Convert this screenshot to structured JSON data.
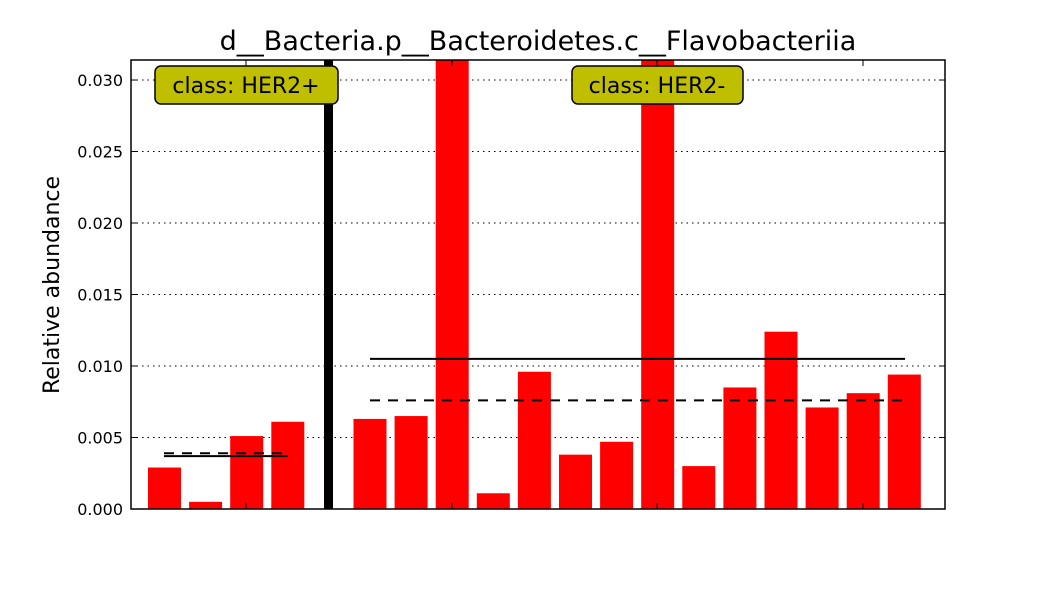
{
  "chart_data": {
    "type": "bar",
    "title": "d__Bacteria.p__Bacteroidetes.c__Flavobacteriia",
    "xlabel": "",
    "ylabel": "Relative abundance",
    "ylim": [
      0,
      0.0314
    ],
    "yticks": [
      "0.000",
      "0.005",
      "0.010",
      "0.015",
      "0.020",
      "0.025",
      "0.030"
    ],
    "ytick_values": [
      0,
      0.005,
      0.01,
      0.015,
      0.02,
      0.025,
      0.03
    ],
    "grid": "horizontal dotted",
    "bar_color": "#ff0000",
    "box_color": "#bfbf00",
    "groups": [
      {
        "label": "class: HER2+",
        "values": [
          0.0029,
          0.0005,
          0.0051,
          0.0061
        ],
        "mean": 0.0037,
        "median": 0.0039
      },
      {
        "label": "class: HER2-",
        "values": [
          0.0063,
          0.0065,
          0.0314,
          0.0011,
          0.0096,
          0.0038,
          0.0047,
          0.0314,
          0.003,
          0.0085,
          0.0124,
          0.0071,
          0.0081,
          0.0094
        ],
        "mean": 0.0105,
        "median": 0.0076
      }
    ]
  }
}
